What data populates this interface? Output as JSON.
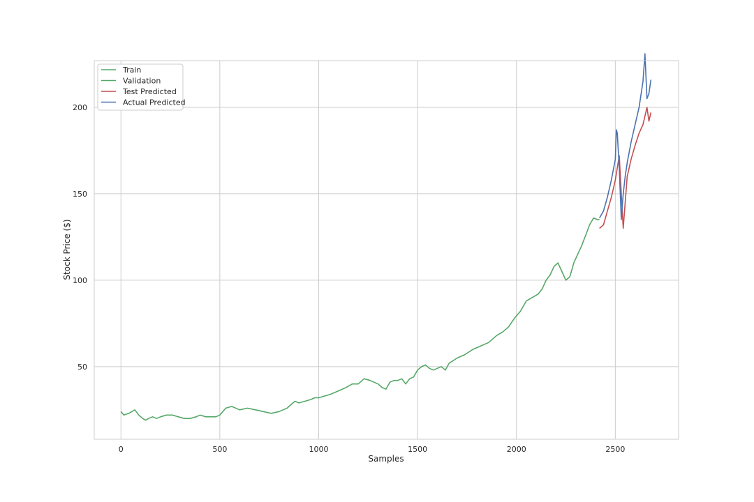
{
  "chart_data": {
    "type": "line",
    "title": "",
    "xlabel": "Samples",
    "ylabel": "Stock Price ($)",
    "xlim": [
      -135,
      2820
    ],
    "ylim": [
      8,
      227
    ],
    "xticks": [
      0,
      500,
      1000,
      1500,
      2000,
      2500
    ],
    "yticks": [
      50,
      100,
      150,
      200
    ],
    "grid": true,
    "legend_position": "top-left",
    "series": [
      {
        "name": "Train",
        "color": "#55a868",
        "x": [
          0,
          15,
          40,
          70,
          90,
          110,
          125,
          140,
          160,
          180,
          200,
          230,
          260,
          290,
          320,
          350,
          380,
          400,
          430,
          460,
          480,
          500,
          530,
          560,
          600,
          640,
          680,
          720,
          760,
          800,
          820,
          840,
          860,
          880,
          900,
          930,
          960,
          980,
          1000,
          1030,
          1060,
          1100,
          1140,
          1170,
          1200,
          1230,
          1260,
          1280,
          1300,
          1320,
          1340,
          1360,
          1380,
          1400,
          1420,
          1440,
          1460,
          1480,
          1500,
          1520,
          1540,
          1560,
          1580,
          1600,
          1620,
          1640,
          1660,
          1700,
          1740,
          1780,
          1820,
          1860,
          1900,
          1930,
          1960,
          1990,
          2020,
          2050,
          2080,
          2110,
          2130,
          2150,
          2170,
          2190,
          2210,
          2230,
          2250,
          2270,
          2290,
          2310,
          2330,
          2350,
          2370,
          2390,
          2410,
          2420
        ],
        "y": [
          24,
          22,
          23,
          25,
          22,
          20,
          19,
          20,
          21,
          20,
          21,
          22,
          22,
          21,
          20,
          20,
          21,
          22,
          21,
          21,
          21,
          22,
          26,
          27,
          25,
          26,
          25,
          24,
          23,
          24,
          25,
          26,
          28,
          30,
          29,
          30,
          31,
          32,
          32,
          33,
          34,
          36,
          38,
          40,
          40,
          43,
          42,
          41,
          40,
          38,
          37,
          41,
          42,
          42,
          43,
          40,
          43,
          44,
          48,
          50,
          51,
          49,
          48,
          49,
          50,
          48,
          52,
          55,
          57,
          60,
          62,
          64,
          68,
          70,
          73,
          78,
          82,
          88,
          90,
          92,
          95,
          100,
          103,
          108,
          110,
          105,
          100,
          102,
          110,
          115,
          120,
          126,
          132,
          136,
          135,
          135
        ]
      },
      {
        "name": "Validation",
        "color": "#55a868",
        "x": [],
        "y": []
      },
      {
        "name": "Test Predicted",
        "color": "#c44e52",
        "x": [
          2420,
          2440,
          2460,
          2480,
          2500,
          2510,
          2520,
          2530,
          2540,
          2550,
          2560,
          2580,
          2600,
          2620,
          2640,
          2660,
          2670,
          2680
        ],
        "y": [
          130,
          132,
          140,
          148,
          158,
          165,
          172,
          150,
          130,
          145,
          160,
          170,
          178,
          185,
          190,
          200,
          192,
          197
        ]
      },
      {
        "name": "Actual Predicted",
        "color": "#4c72b0",
        "x": [
          2420,
          2440,
          2460,
          2480,
          2500,
          2505,
          2510,
          2520,
          2530,
          2540,
          2550,
          2560,
          2580,
          2600,
          2620,
          2640,
          2650,
          2660,
          2670,
          2680
        ],
        "y": [
          136,
          140,
          148,
          158,
          170,
          187,
          185,
          165,
          135,
          150,
          160,
          168,
          180,
          190,
          200,
          215,
          231,
          205,
          208,
          216
        ]
      }
    ]
  }
}
